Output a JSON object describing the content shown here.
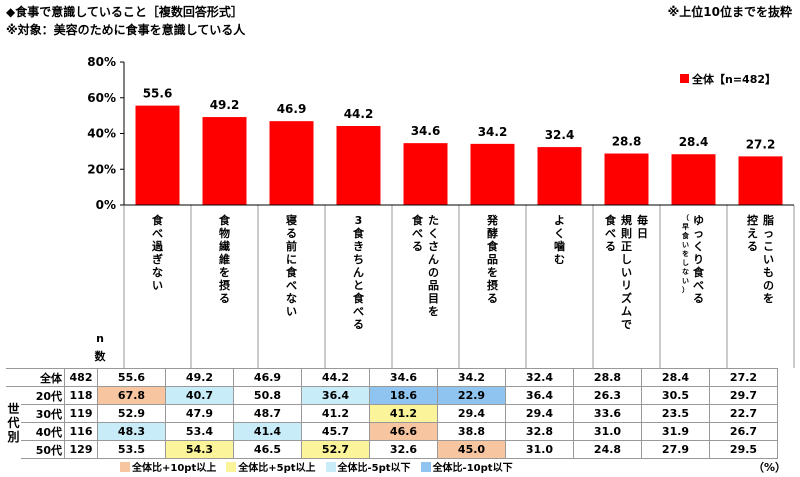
{
  "header": {
    "title": "◆食事で意識していること［複数回答形式］",
    "subtitle": "※対象：美容のために食事を意識している人",
    "note": "※上位10位までを抜粋"
  },
  "chart_data": {
    "type": "bar",
    "series": [
      {
        "name": "全体【n=482】",
        "color": "#ff0000",
        "values": [
          55.6,
          49.2,
          46.9,
          44.2,
          34.6,
          34.2,
          32.4,
          28.8,
          28.4,
          27.2
        ]
      }
    ],
    "categories": [
      {
        "lines": [
          "食べ過ぎない"
        ]
      },
      {
        "lines": [
          "食物繊維を摂る"
        ]
      },
      {
        "lines": [
          "寝る前に食べない"
        ]
      },
      {
        "lines": [
          "3食きちんと食べる"
        ]
      },
      {
        "lines": [
          "たくさんの品目を",
          "食べる"
        ]
      },
      {
        "lines": [
          "発酵食品を摂る"
        ]
      },
      {
        "lines": [
          "よく噛む"
        ]
      },
      {
        "lines": [
          "毎日",
          "規則正しいリズムで",
          "食べる"
        ]
      },
      {
        "lines": [
          "ゆっくり食べる"
        ],
        "sub": "（早食いをしない）"
      },
      {
        "lines": [
          "脂っこいものを",
          "控える"
        ]
      }
    ],
    "yticks": [
      "80%",
      "60%",
      "40%",
      "20%",
      "0%"
    ],
    "ylim": [
      0,
      80
    ],
    "legend_position": "top-right",
    "grid": false
  },
  "table": {
    "n_header": [
      "n",
      "数"
    ],
    "group_label": [
      "世",
      "代",
      "別"
    ],
    "rows": [
      {
        "label": "全体",
        "n": "482",
        "values": [
          "55.6",
          "49.2",
          "46.9",
          "44.2",
          "34.6",
          "34.2",
          "32.4",
          "28.8",
          "28.4",
          "27.2"
        ],
        "marks": [
          "",
          "",
          "",
          "",
          "",
          "",
          "",
          "",
          "",
          ""
        ]
      },
      {
        "label": "20代",
        "n": "118",
        "values": [
          "67.8",
          "40.7",
          "50.8",
          "36.4",
          "18.6",
          "22.9",
          "36.4",
          "26.3",
          "30.5",
          "29.7"
        ],
        "marks": [
          "hi10",
          "lo5",
          "",
          "lo5",
          "lo10",
          "lo10",
          "",
          "",
          "",
          ""
        ]
      },
      {
        "label": "30代",
        "n": "119",
        "values": [
          "52.9",
          "47.9",
          "48.7",
          "41.2",
          "41.2",
          "29.4",
          "29.4",
          "33.6",
          "23.5",
          "22.7"
        ],
        "marks": [
          "",
          "",
          "",
          "",
          "hi5",
          "",
          "",
          "",
          "",
          ""
        ]
      },
      {
        "label": "40代",
        "n": "116",
        "values": [
          "48.3",
          "53.4",
          "41.4",
          "45.7",
          "46.6",
          "38.8",
          "32.8",
          "31.0",
          "31.9",
          "26.7"
        ],
        "marks": [
          "lo5",
          "",
          "lo5",
          "",
          "hi10",
          "",
          "",
          "",
          "",
          ""
        ]
      },
      {
        "label": "50代",
        "n": "129",
        "values": [
          "53.5",
          "54.3",
          "46.5",
          "52.7",
          "32.6",
          "45.0",
          "31.0",
          "24.8",
          "27.9",
          "29.5"
        ],
        "marks": [
          "",
          "hi5",
          "",
          "hi5",
          "",
          "hi10",
          "",
          "",
          "",
          ""
        ]
      }
    ]
  },
  "legend_bottom": [
    {
      "label": "全体比+10pt以上",
      "color": "#f7c59f"
    },
    {
      "label": "全体比+5pt以上",
      "color": "#fcf49a"
    },
    {
      "label": "全体比-5pt以下",
      "color": "#c8ecf8"
    },
    {
      "label": "全体比-10pt以下",
      "color": "#8fc3f0"
    }
  ],
  "unit": "（%）"
}
